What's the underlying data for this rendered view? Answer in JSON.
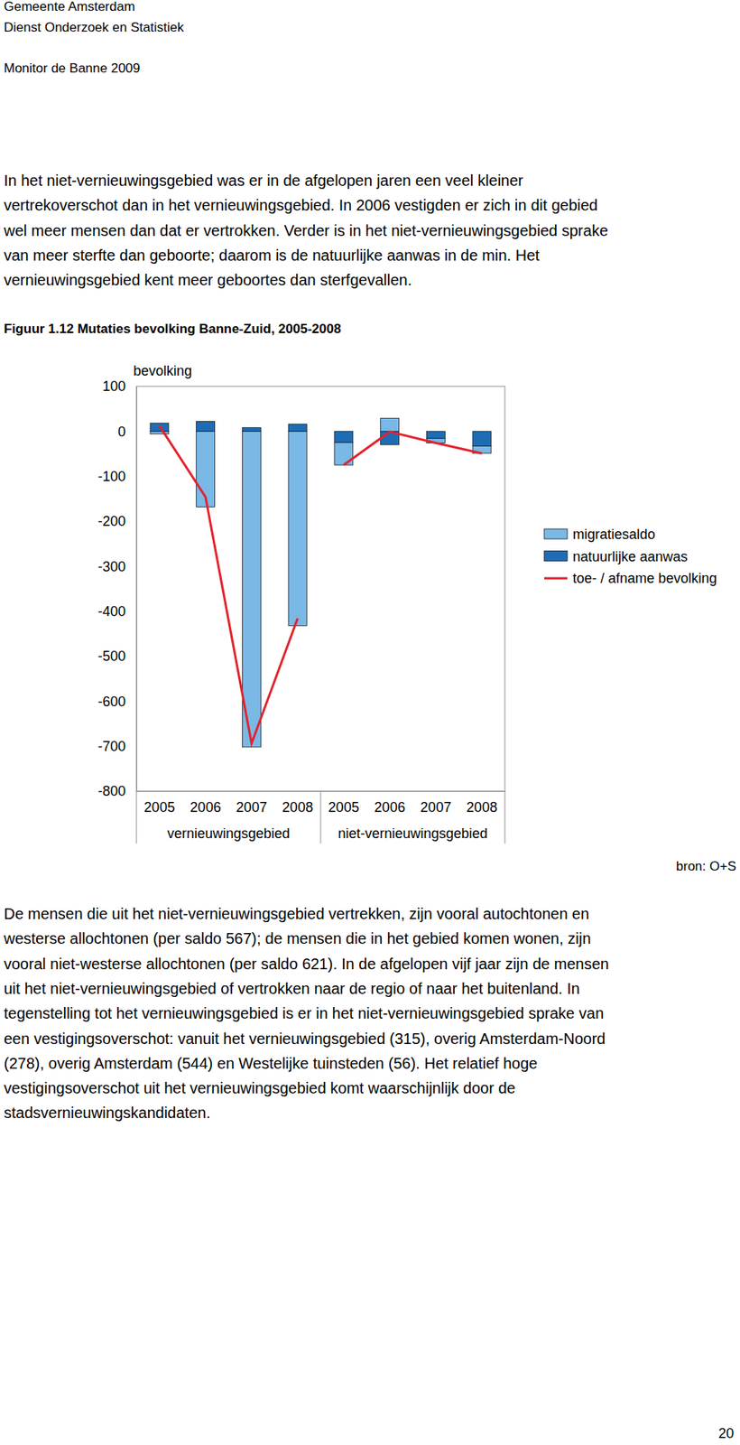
{
  "header": {
    "lines": [
      "Gemeente Amsterdam",
      "Dienst Onderzoek en Statistiek",
      "Monitor de Banne 2009"
    ]
  },
  "paragraphs": [
    [
      "In het niet-vernieuwingsgebied was er in de afgelopen jaren een veel kleiner",
      "vertrekoverschot dan in het vernieuwingsgebied. In 2006 vestigden er zich in dit gebied",
      "wel meer mensen dan dat er vertrokken. Verder is in het niet-vernieuwingsgebied sprake",
      "van meer sterfte dan geboorte; daarom is de natuurlijke aanwas in de min. Het",
      "vernieuwingsgebied kent meer geboortes dan sterfgevallen."
    ],
    [
      "De mensen die uit het niet-vernieuwingsgebied vertrekken, zijn vooral autochtonen en",
      "westerse allochtonen (per saldo 567); de mensen die in het gebied komen wonen, zijn",
      "vooral niet-westerse allochtonen (per saldo 621). In de afgelopen vijf jaar zijn de mensen",
      "uit het niet-vernieuwingsgebied of vertrokken naar de regio of naar het buitenland. In",
      "tegenstelling tot het vernieuwingsgebied is er in het niet-vernieuwingsgebied sprake van",
      "een vestigingsoverschot: vanuit het vernieuwingsgebied (315), overig Amsterdam-Noord",
      "(278), overig Amsterdam (544) en Westelijke tuinsteden (56). Het relatief hoge",
      "vestigingsoverschot uit het vernieuwingsgebied komt waarschijnlijk door de",
      "stadsvernieuwingskandidaten."
    ]
  ],
  "page_number": "20",
  "chart_data": {
    "type": "bar",
    "title": "Figuur 1.12 Mutaties bevolking Banne-Zuid, 2005-2008",
    "y_label": "bevolking",
    "source": "bron: O+S",
    "categories": [
      "2005",
      "2006",
      "2007",
      "2008",
      "2005",
      "2006",
      "2007",
      "2008"
    ],
    "groups": [
      "vernieuwingsgebied",
      "niet-vernieuwingsgebied"
    ],
    "stacked": true,
    "legend": "right",
    "series": [
      {
        "name": "migratiesaldo",
        "color": "#7ab8e6",
        "values": [
          -6,
          -168,
          -702,
          -432,
          -50,
          29,
          -10,
          -16
        ]
      },
      {
        "name": "natuurlijke aanwas",
        "color": "#1f6cb4",
        "values": [
          18,
          22,
          8,
          16,
          -25,
          -30,
          -16,
          -33
        ]
      },
      {
        "name": "toe- / afname bevolking",
        "type": "line",
        "color": "#e3222b",
        "values": [
          12,
          -146,
          -694,
          -416,
          -75,
          -1,
          -26,
          -49
        ]
      }
    ],
    "ylim": [
      -800,
      100
    ],
    "yticks": [
      -800,
      -700,
      -600,
      -500,
      -400,
      -300,
      -200,
      -100,
      0,
      100
    ]
  }
}
